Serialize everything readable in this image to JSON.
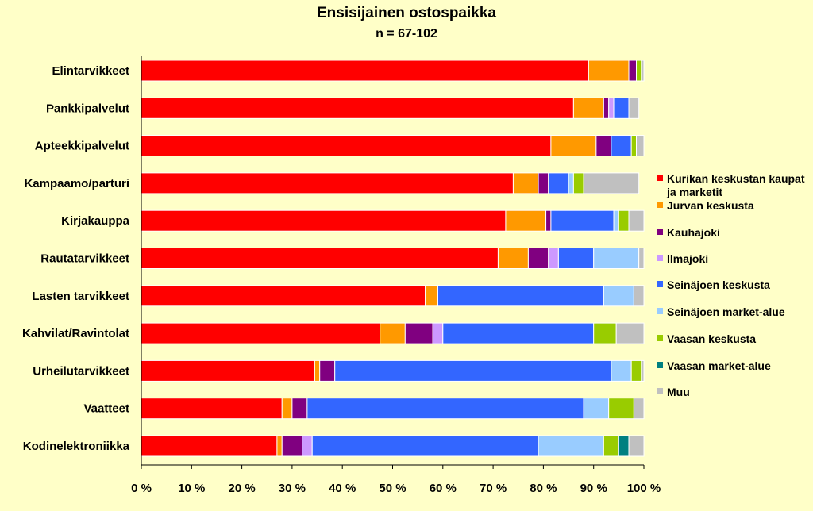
{
  "chart_data": {
    "type": "bar",
    "orientation": "horizontal",
    "stacked": true,
    "title": "Ensisijainen ostospaikka",
    "subtitle": "n = 67-102",
    "xlim": [
      0,
      100
    ],
    "x_ticks": [
      "0 %",
      "10 %",
      "20 %",
      "30 %",
      "40 %",
      "50 %",
      "60 %",
      "70 %",
      "80 %",
      "90 %",
      "100 %"
    ],
    "grid": false,
    "legend_position": "right",
    "categories": [
      "Elintarvikkeet",
      "Pankkipalvelut",
      "Apteekkipalvelut",
      "Kampaamo/parturi",
      "Kirjakauppa",
      "Rautatarvikkeet",
      "Lasten tarvikkeet",
      "Kahvilat/Ravintolat",
      "Urheilutarvikkeet",
      "Vaatteet",
      "Kodinelektroniikka"
    ],
    "series": [
      {
        "name": "Kurikan keskustan kaupat ja marketit",
        "color": "#FF0000",
        "values": [
          89,
          86,
          81.5,
          74,
          72.5,
          71,
          56.5,
          47.5,
          34.5,
          28,
          27
        ]
      },
      {
        "name": "Jurvan keskusta",
        "color": "#FF9900",
        "values": [
          8,
          6,
          9,
          5,
          8,
          6,
          2.5,
          5,
          1,
          2,
          1
        ]
      },
      {
        "name": "Kauhajoki",
        "color": "#800080",
        "values": [
          1.5,
          1,
          3,
          2,
          1,
          4,
          0,
          5.5,
          3,
          3,
          4
        ]
      },
      {
        "name": "Ilmajoki",
        "color": "#CC99FF",
        "values": [
          0,
          1,
          0,
          0,
          0,
          2,
          0,
          2,
          0,
          0,
          2
        ]
      },
      {
        "name": "Seinäjoen keskusta",
        "color": "#3366FF",
        "values": [
          0,
          3,
          4,
          4,
          12.5,
          7,
          33,
          30,
          55,
          55,
          45
        ]
      },
      {
        "name": "Seinäjoen market-alue",
        "color": "#99CCFF",
        "values": [
          0,
          0,
          0,
          1,
          1,
          9,
          6,
          0,
          4,
          5,
          13
        ]
      },
      {
        "name": "Vaasan keskusta",
        "color": "#99CC00",
        "values": [
          1,
          0,
          1,
          2,
          2,
          0,
          0,
          4.5,
          2,
          5,
          3
        ]
      },
      {
        "name": "Vaasan market-alue",
        "color": "#008080",
        "values": [
          0,
          0,
          0,
          0,
          0,
          0,
          0,
          0,
          0,
          0,
          2
        ]
      },
      {
        "name": "Muu",
        "color": "#C0C0C0",
        "values": [
          0.5,
          2,
          1.5,
          11,
          3,
          1,
          2,
          5.5,
          0.5,
          2,
          3
        ]
      }
    ]
  }
}
